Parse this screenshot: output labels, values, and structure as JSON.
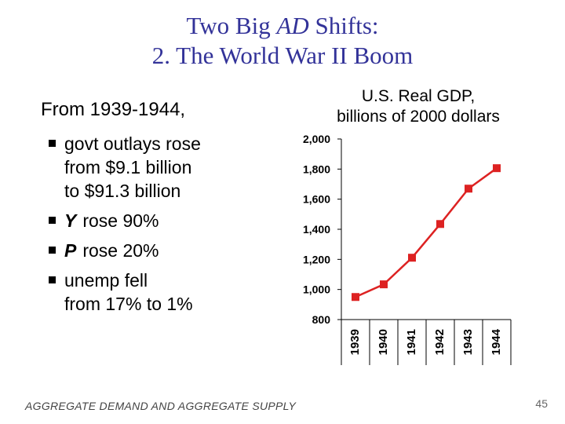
{
  "slide": {
    "title_line1_pre": "Two Big ",
    "title_line1_em": "AD",
    "title_line1_post": " Shifts:",
    "title_line2": "2.  The World War II Boom",
    "intro": "From 1939-1944,",
    "bullets": [
      {
        "line1": "govt outlays rose",
        "line2": "from $9.1 billion",
        "line3": "to $91.3 billion"
      },
      {
        "var": "Y",
        "text": "rose 90%"
      },
      {
        "var": "P",
        "text": "rose 20%"
      },
      {
        "line1": "unemp fell",
        "line2": "from 17% to 1%"
      }
    ],
    "footer": "AGGREGATE DEMAND AND AGGREGATE SUPPLY",
    "page_number": "45"
  },
  "colors": {
    "title": "#333399",
    "series": "#dd2222",
    "axis": "#000000"
  },
  "chart_data": {
    "type": "line",
    "title_line1": "U.S. Real GDP,",
    "title_line2": "billions of 2000 dollars",
    "categories": [
      "1939",
      "1940",
      "1941",
      "1942",
      "1943",
      "1944"
    ],
    "series": [
      {
        "name": "U.S. Real GDP",
        "values": [
          950,
          1034,
          1211,
          1435,
          1670,
          1806
        ]
      }
    ],
    "yticks": [
      "2,000",
      "1,800",
      "1,600",
      "1,400",
      "1,200",
      "1,000",
      "800"
    ],
    "ytick_values": [
      2000,
      1800,
      1600,
      1400,
      1200,
      1000,
      800
    ],
    "ylim": [
      800,
      2000
    ],
    "xlabel": "",
    "ylabel": ""
  }
}
